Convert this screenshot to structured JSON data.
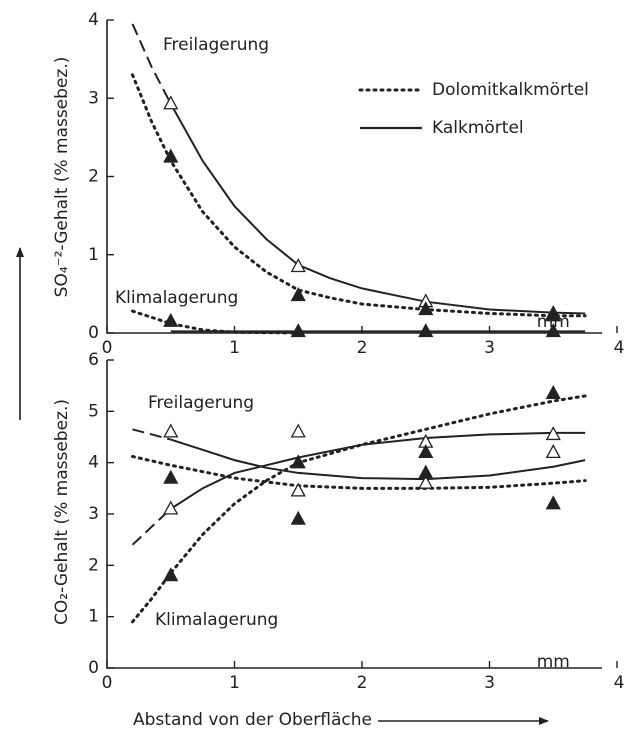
{
  "chart_data": [
    {
      "type": "line",
      "ylabel": "SO₄⁻²-Gehalt (% massebez.)",
      "x_unit": "mm",
      "xlim": [
        0,
        4
      ],
      "xticks": [
        0,
        1,
        2,
        3,
        4
      ],
      "ylim": [
        0,
        4
      ],
      "yticks": [
        0,
        1,
        2,
        3,
        4
      ],
      "annotations": [
        "Freilagerung",
        "Klimalagerung"
      ],
      "legend": [
        {
          "label": "Dolomitkalkmörtel",
          "style": "dotted"
        },
        {
          "label": "Kalkmörtel",
          "style": "solid"
        }
      ],
      "series": [
        {
          "style": "dashed",
          "x": [
            0.2,
            0.35,
            0.5
          ],
          "values": [
            3.95,
            3.4,
            2.93
          ]
        },
        {
          "style": "solid",
          "x": [
            0.5,
            0.75,
            1.0,
            1.25,
            1.5,
            1.75,
            2.0,
            2.5,
            3.0,
            3.5,
            3.75
          ],
          "values": [
            2.93,
            2.2,
            1.62,
            1.2,
            0.87,
            0.7,
            0.57,
            0.4,
            0.3,
            0.26,
            0.25
          ]
        },
        {
          "style": "dotted",
          "x": [
            0.2,
            0.35,
            0.5,
            0.75,
            1.0,
            1.25,
            1.5,
            1.75,
            2.0,
            2.5,
            3.0,
            3.5,
            3.75
          ],
          "values": [
            3.3,
            2.7,
            2.2,
            1.55,
            1.1,
            0.78,
            0.55,
            0.45,
            0.37,
            0.3,
            0.25,
            0.22,
            0.22
          ]
        },
        {
          "style": "dotted",
          "x": [
            0.2,
            0.5,
            0.75,
            1.0,
            1.5
          ],
          "values": [
            0.28,
            0.12,
            0.04,
            0.01,
            0
          ]
        },
        {
          "style": "solid",
          "x": [
            0.5,
            3.75
          ],
          "values": [
            0.02,
            0.02
          ]
        },
        {
          "marker": "open",
          "x": [
            0.5,
            1.5,
            2.5,
            3.5
          ],
          "values": [
            2.93,
            0.85,
            0.4,
            0.25
          ]
        },
        {
          "marker": "filled",
          "x": [
            0.5,
            1.5,
            2.5,
            3.5,
            0.5,
            1.5,
            2.5,
            3.5
          ],
          "values": [
            2.25,
            0.48,
            0.3,
            0.22,
            0.15,
            0.02,
            0.02,
            0.02
          ]
        }
      ]
    },
    {
      "type": "line",
      "ylabel": "CO₂-Gehalt (% massebez.)",
      "xlabel": "Abstand von der Oberfläche",
      "x_unit": "mm",
      "xlim": [
        0,
        4
      ],
      "xticks": [
        0,
        1,
        2,
        3,
        4
      ],
      "ylim": [
        0,
        6
      ],
      "yticks": [
        0,
        1,
        2,
        3,
        4,
        5,
        6
      ],
      "annotations": [
        "Freilagerung",
        "Klimalagerung"
      ],
      "series": [
        {
          "style": "dashed",
          "x": [
            0.2,
            0.5
          ],
          "values": [
            4.65,
            4.45
          ]
        },
        {
          "style": "solid",
          "x": [
            0.5,
            0.75,
            1.0,
            1.25,
            1.5,
            2.0,
            2.5,
            3.0,
            3.5,
            3.75
          ],
          "values": [
            4.45,
            4.25,
            4.05,
            3.9,
            3.8,
            3.7,
            3.68,
            3.75,
            3.92,
            4.05
          ]
        },
        {
          "style": "dashed",
          "x": [
            0.2,
            0.35,
            0.5
          ],
          "values": [
            2.4,
            2.75,
            3.1
          ]
        },
        {
          "style": "solid",
          "x": [
            0.5,
            0.75,
            1.0,
            1.5,
            2.0,
            2.5,
            3.0,
            3.5,
            3.75
          ],
          "values": [
            3.1,
            3.5,
            3.8,
            4.1,
            4.35,
            4.48,
            4.55,
            4.58,
            4.58
          ]
        },
        {
          "style": "dotted",
          "x": [
            0.2,
            0.5,
            1.0,
            1.5,
            2.0,
            2.5,
            3.0,
            3.5,
            3.75
          ],
          "values": [
            4.12,
            3.95,
            3.7,
            3.55,
            3.5,
            3.5,
            3.52,
            3.6,
            3.65
          ]
        },
        {
          "style": "dotted",
          "x": [
            0.2,
            0.35,
            0.5,
            0.75,
            1.0,
            1.25,
            1.5,
            2.0,
            2.5,
            3.0,
            3.5,
            3.75
          ],
          "values": [
            0.9,
            1.35,
            1.85,
            2.6,
            3.2,
            3.65,
            4.0,
            4.35,
            4.65,
            4.95,
            5.2,
            5.3
          ]
        },
        {
          "marker": "open",
          "x": [
            0.5,
            1.5,
            2.5,
            3.5,
            0.5,
            1.5,
            2.5,
            3.5
          ],
          "values": [
            4.6,
            3.45,
            3.6,
            4.2,
            3.1,
            4.6,
            4.4,
            4.55
          ]
        },
        {
          "marker": "filled",
          "x": [
            0.5,
            1.5,
            2.5,
            3.5,
            0.5,
            1.5,
            2.5,
            3.5
          ],
          "values": [
            3.7,
            2.9,
            3.8,
            3.2,
            1.8,
            4.0,
            4.2,
            5.35
          ]
        }
      ]
    }
  ]
}
